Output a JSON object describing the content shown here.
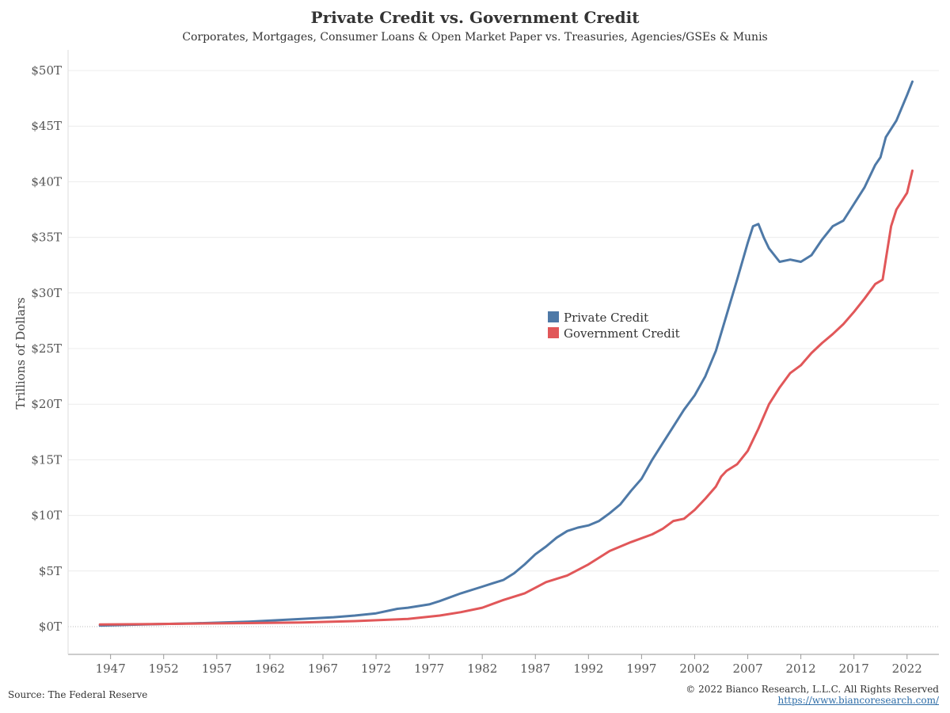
{
  "header": {
    "title": "Private Credit vs. Government Credit",
    "subtitle": "Corporates, Mortgages, Consumer Loans & Open Market Paper vs. Treasuries, Agencies/GSEs & Munis"
  },
  "footer": {
    "source": "Source: The Federal Reserve",
    "copyright": "© 2022 Bianco Research, L.L.C. All Rights Reserved",
    "url": "https://www.biancoresearch.com/"
  },
  "colors": {
    "private": "#4e79a7",
    "government": "#e15759"
  },
  "chart_data": {
    "type": "line",
    "ylabel": "Trillions of Dollars",
    "xlabel": "",
    "ylim": [
      0,
      50
    ],
    "xlim": [
      1943,
      2025
    ],
    "y_ticks": [
      0,
      5,
      10,
      15,
      20,
      25,
      30,
      35,
      40,
      45,
      50
    ],
    "y_tick_labels": [
      "$0T",
      "$5T",
      "$10T",
      "$15T",
      "$20T",
      "$25T",
      "$30T",
      "$35T",
      "$40T",
      "$45T",
      "$50T"
    ],
    "x_ticks": [
      1947,
      1952,
      1957,
      1962,
      1967,
      1972,
      1977,
      1982,
      1987,
      1992,
      1997,
      2002,
      2007,
      2012,
      2017,
      2022
    ],
    "x_tick_labels": [
      "1947",
      "1952",
      "1957",
      "1962",
      "1967",
      "1972",
      "1977",
      "1982",
      "1987",
      "1992",
      "1997",
      "2002",
      "2007",
      "2012",
      "2017",
      "2022"
    ],
    "grid": "horizontal",
    "legend": "center-right",
    "series": [
      {
        "name": "Private Credit",
        "color": "#4e79a7",
        "x": [
          1946,
          1950,
          1955,
          1960,
          1965,
          1968,
          1970,
          1972,
          1974,
          1975,
          1977,
          1978,
          1980,
          1982,
          1983,
          1984,
          1985,
          1986,
          1987,
          1988,
          1989,
          1990,
          1991,
          1992,
          1993,
          1994,
          1995,
          1996,
          1997,
          1998,
          1999,
          2000,
          2001,
          2002,
          2003,
          2004,
          2005,
          2006,
          2007,
          2007.5,
          2008,
          2008.5,
          2009,
          2010,
          2011,
          2012,
          2013,
          2014,
          2015,
          2016,
          2017,
          2018,
          2019,
          2019.5,
          2020,
          2021,
          2022,
          2022.5
        ],
        "y": [
          0.1,
          0.2,
          0.3,
          0.45,
          0.7,
          0.85,
          1.0,
          1.2,
          1.6,
          1.7,
          2.0,
          2.3,
          3.0,
          3.6,
          3.9,
          4.2,
          4.8,
          5.6,
          6.5,
          7.2,
          8.0,
          8.6,
          8.9,
          9.1,
          9.5,
          10.2,
          11.0,
          12.2,
          13.3,
          15.0,
          16.5,
          18.0,
          19.5,
          20.8,
          22.5,
          24.8,
          28.0,
          31.2,
          34.5,
          36.0,
          36.2,
          35.0,
          34.0,
          32.8,
          33.0,
          32.8,
          33.4,
          34.8,
          36.0,
          36.5,
          38.0,
          39.5,
          41.5,
          42.2,
          44.0,
          45.5,
          47.8,
          49.0
        ]
      },
      {
        "name": "Government Credit",
        "color": "#e15759",
        "x": [
          1946,
          1950,
          1955,
          1960,
          1965,
          1970,
          1975,
          1978,
          1980,
          1982,
          1984,
          1986,
          1987,
          1988,
          1990,
          1992,
          1994,
          1996,
          1998,
          1999,
          2000,
          2001,
          2002,
          2003,
          2004,
          2004.5,
          2005,
          2006,
          2007,
          2008,
          2009,
          2010,
          2011,
          2012,
          2013,
          2014,
          2015,
          2016,
          2017,
          2018,
          2019,
          2019.7,
          2020,
          2020.5,
          2021,
          2022,
          2022.5
        ],
        "y": [
          0.2,
          0.22,
          0.28,
          0.32,
          0.38,
          0.5,
          0.7,
          1.0,
          1.3,
          1.7,
          2.4,
          3.0,
          3.5,
          4.0,
          4.6,
          5.6,
          6.8,
          7.6,
          8.3,
          8.8,
          9.5,
          9.7,
          10.5,
          11.5,
          12.6,
          13.5,
          14.0,
          14.6,
          15.8,
          17.8,
          20.0,
          21.5,
          22.8,
          23.5,
          24.6,
          25.5,
          26.3,
          27.2,
          28.3,
          29.5,
          30.8,
          31.2,
          33.0,
          36.0,
          37.5,
          39.0,
          41.0
        ]
      }
    ]
  }
}
